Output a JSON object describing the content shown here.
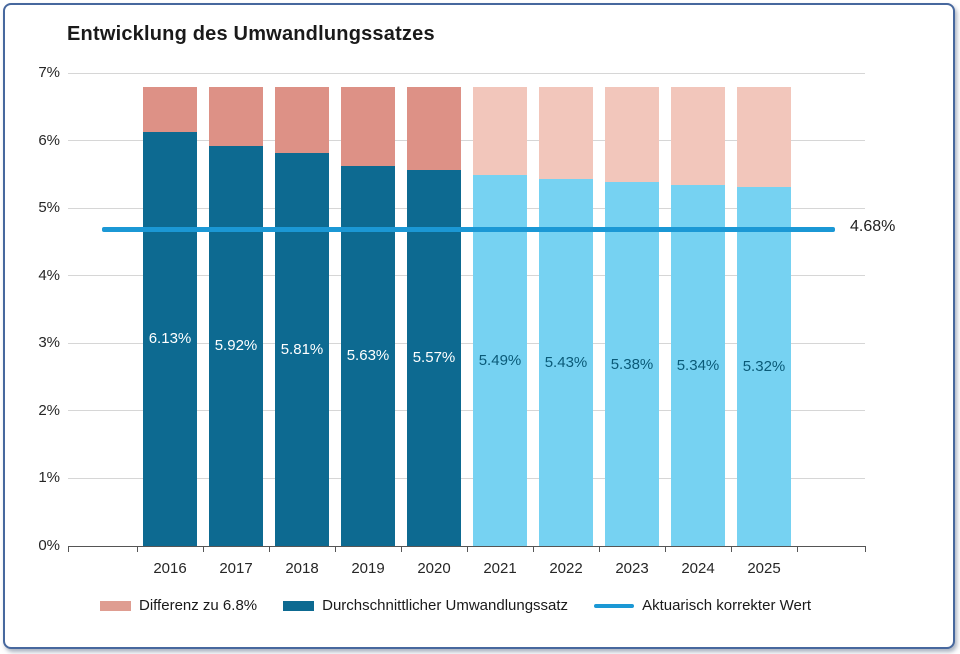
{
  "chart_data": {
    "type": "bar",
    "stacked": true,
    "title": "Entwicklung des Umwandlungssatzes",
    "xlabel": "",
    "ylabel": "",
    "ylim": [
      0,
      7
    ],
    "ytick_labels": [
      "0%",
      "1%",
      "2%",
      "3%",
      "4%",
      "5%",
      "6%",
      "7%"
    ],
    "grid": true,
    "stack_top": 6.8,
    "categories": [
      "2016",
      "2017",
      "2018",
      "2019",
      "2020",
      "2021",
      "2022",
      "2023",
      "2024",
      "2025"
    ],
    "series": [
      {
        "name": "Durchschnittlicher Umwandlungssatz",
        "values": [
          6.13,
          5.92,
          5.81,
          5.63,
          5.57,
          5.49,
          5.43,
          5.38,
          5.34,
          5.32
        ]
      },
      {
        "name": "Differenz zu 6.8%",
        "values": [
          0.67,
          0.88,
          0.99,
          1.17,
          1.23,
          1.31,
          1.37,
          1.42,
          1.46,
          1.48
        ]
      }
    ],
    "bars": [
      {
        "year": "2016",
        "value": 6.13,
        "label": "6.13%",
        "status": "actual"
      },
      {
        "year": "2017",
        "value": 5.92,
        "label": "5.92%",
        "status": "actual"
      },
      {
        "year": "2018",
        "value": 5.81,
        "label": "5.81%",
        "status": "actual"
      },
      {
        "year": "2019",
        "value": 5.63,
        "label": "5.63%",
        "status": "actual"
      },
      {
        "year": "2020",
        "value": 5.57,
        "label": "5.57%",
        "status": "actual"
      },
      {
        "year": "2021",
        "value": 5.49,
        "label": "5.49%",
        "status": "projected"
      },
      {
        "year": "2022",
        "value": 5.43,
        "label": "5.43%",
        "status": "projected"
      },
      {
        "year": "2023",
        "value": 5.38,
        "label": "5.38%",
        "status": "projected"
      },
      {
        "year": "2024",
        "value": 5.34,
        "label": "5.34%",
        "status": "projected"
      },
      {
        "year": "2025",
        "value": 5.32,
        "label": "5.32%",
        "status": "projected"
      }
    ],
    "reference_line": {
      "name": "Aktuarisch korrekter Wert",
      "value": 4.68,
      "label": "4.68%"
    },
    "legend_position": "bottom",
    "legend": [
      {
        "label": "Differenz zu 6.8%",
        "swatch": "rect",
        "color_key": "actual_diff"
      },
      {
        "label": "Durchschnittlicher Umwandlungssatz",
        "swatch": "rect",
        "color_key": "actual"
      },
      {
        "label": "Aktuarisch korrekter Wert",
        "swatch": "line",
        "color_key": "reference"
      }
    ],
    "colors": {
      "actual": "#0d6a91",
      "actual_diff": "#dd9186",
      "projected": "#76d2f2",
      "projected_diff": "#f2c6bb",
      "reference": "#1b98d5",
      "label_on_actual": "#ffffff",
      "label_on_projected": "#0a5a78",
      "legend_diff_swatch": "#df9d91"
    }
  }
}
